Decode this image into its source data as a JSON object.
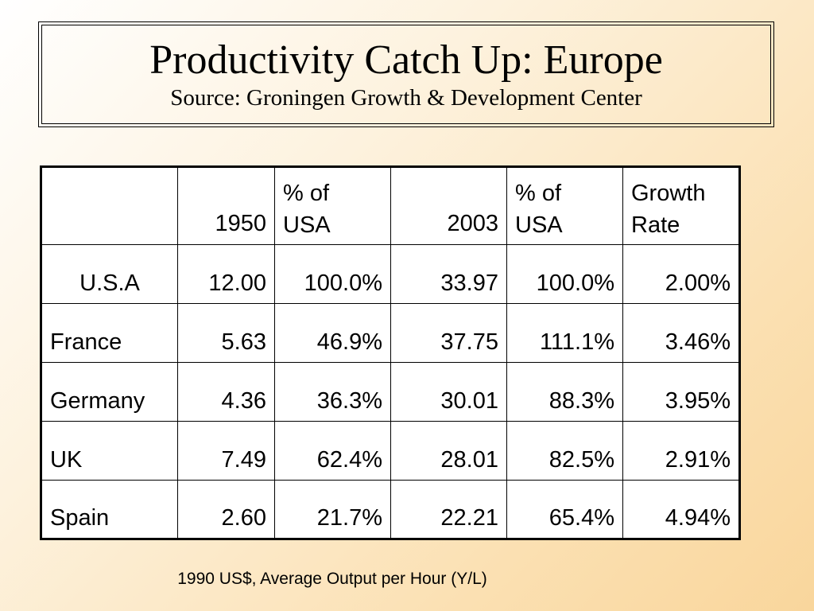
{
  "title": "Productivity Catch Up: Europe",
  "subtitle": "Source: Groningen Growth & Development Center",
  "table": {
    "headers": [
      {
        "line1": "",
        "line2": ""
      },
      {
        "line1": "",
        "line2": "1950"
      },
      {
        "line1": "% of",
        "line2": "USA"
      },
      {
        "line1": "",
        "line2": "2003"
      },
      {
        "line1": "% of",
        "line2": "USA"
      },
      {
        "line1": "Growth",
        "line2": "Rate"
      }
    ],
    "rows": [
      [
        "U.S.A",
        "12.00",
        "100.0%",
        "33.97",
        "100.0%",
        "2.00%"
      ],
      [
        "France",
        "5.63",
        "46.9%",
        "37.75",
        "111.1%",
        "3.46%"
      ],
      [
        "Germany",
        "4.36",
        "36.3%",
        "30.01",
        "88.3%",
        "3.95%"
      ],
      [
        "UK",
        "7.49",
        "62.4%",
        "28.01",
        "82.5%",
        "2.91%"
      ],
      [
        "Spain",
        "2.60",
        "21.7%",
        "22.21",
        "65.4%",
        "4.94%"
      ]
    ]
  },
  "footnote": "1990 US$, Average Output per Hour (Y/L)"
}
